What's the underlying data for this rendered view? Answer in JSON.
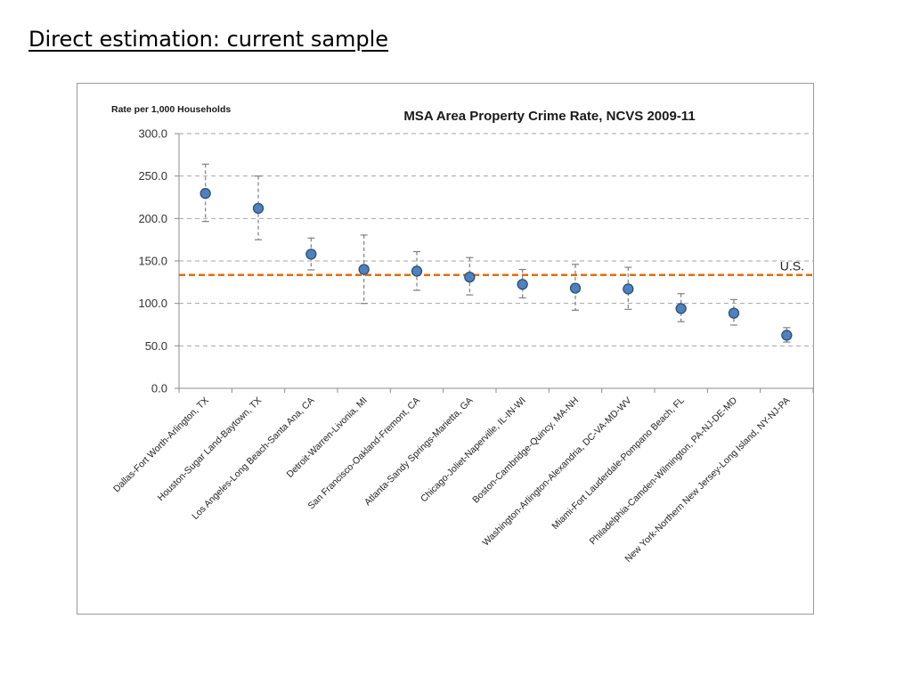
{
  "slide": {
    "title": "Direct estimation: current sample"
  },
  "colors": {
    "marker_fill": "#4f81bd",
    "marker_stroke": "#2c4f7c",
    "reference_line": "#e46c0a",
    "gridline": "#a6a6a6",
    "error_bar": "#7f7f7f"
  },
  "chart_data": {
    "type": "scatter",
    "title": "MSA Area Property Crime Rate, NCVS 2009-11",
    "ylabel": "Rate per 1,000 Households",
    "xlabel": "",
    "ylim": [
      0,
      300
    ],
    "yticks": [
      "0.0",
      "50.0",
      "100.0",
      "150.0",
      "200.0",
      "250.0",
      "300.0"
    ],
    "grid": true,
    "legend": "none",
    "categories": [
      "Dallas-Fort Worth-Arlington, TX",
      "Houston-Sugar Land-Baytown, TX",
      "Los Angeles-Long Beach-Santa Ana, CA",
      "Detroit-Warren-Livonia, MI",
      "San Francisco-Oakland-Fremont, CA",
      "Atlanta-Sandy Springs-Marietta, GA",
      "Chicago-Joliet-Naperville, IL-IN-WI",
      "Boston-Cambridge-Quincy, MA-NH",
      "Washington-Arlington-Alexandria, DC-VA-MD-WV",
      "Miami-Fort Lauderdale-Pompano Beach, FL",
      "Philadelphia-Camden-Wilmington, PA-NJ-DE-MD",
      "New York-Northern New Jersey-Long Island, NY-NJ-PA"
    ],
    "values": [
      229.5,
      212.0,
      158.0,
      140.0,
      138.0,
      131.0,
      122.5,
      118.0,
      117.0,
      94.0,
      88.5,
      62.5
    ],
    "error_low": [
      196.5,
      175.0,
      139.5,
      100.0,
      115.5,
      110.0,
      106.5,
      92.0,
      93.0,
      78.5,
      74.5,
      54.5
    ],
    "error_high": [
      264.0,
      250.0,
      177.0,
      180.5,
      161.0,
      154.0,
      140.0,
      146.0,
      142.5,
      111.5,
      104.5,
      71.5
    ],
    "reference_line": {
      "value": 133.5,
      "label": "U.S."
    }
  }
}
